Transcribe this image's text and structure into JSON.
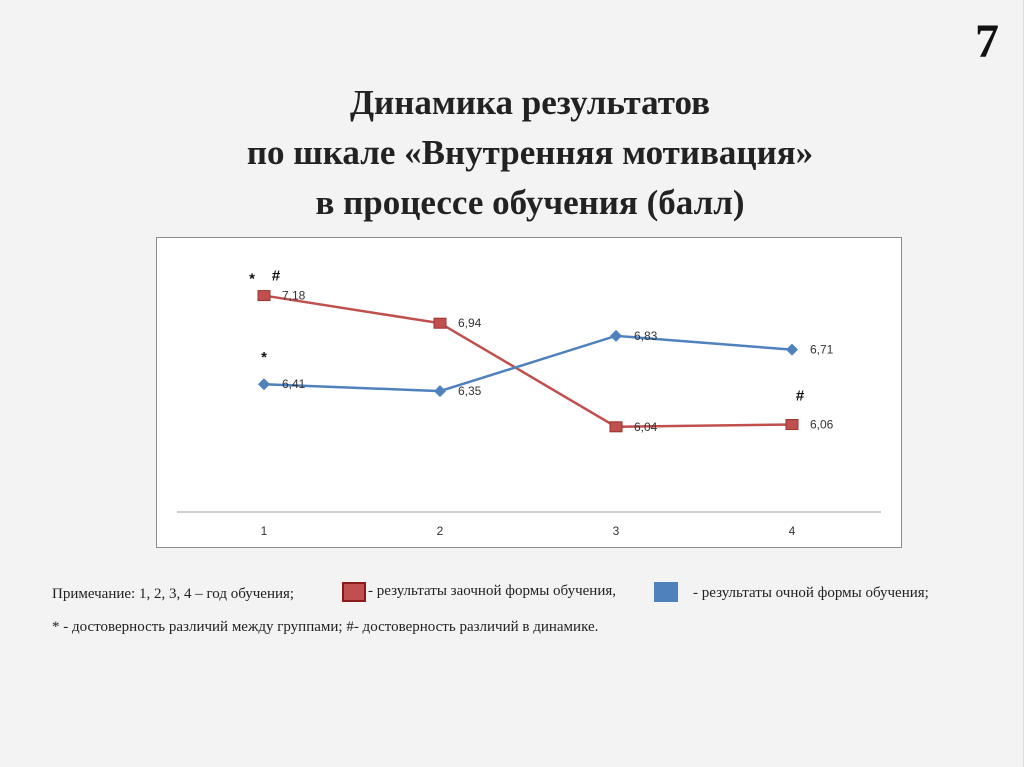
{
  "slide": {
    "number": "7"
  },
  "title": {
    "line1": "Динамика результатов",
    "line2": "по шкале «Внутренняя мотивация»",
    "line3": "в процессе обучения (балл)"
  },
  "chart_data": {
    "type": "line",
    "categories": [
      "1",
      "2",
      "3",
      "4"
    ],
    "series": [
      {
        "name": "- результаты заочной формы обучения,",
        "color": "#c0504d",
        "marker": "square",
        "values": [
          7.18,
          6.94,
          6.04,
          6.06
        ],
        "labels": [
          "7,18",
          "6,94",
          "6,04",
          "6,06"
        ]
      },
      {
        "name": "- результаты очной формы обучения;",
        "color": "#4f81bd",
        "marker": "diamond",
        "values": [
          6.41,
          6.35,
          6.83,
          6.71
        ],
        "labels": [
          "6,41",
          "6,35",
          "6,83",
          "6,71"
        ]
      }
    ],
    "annotations": [
      {
        "text": "*",
        "category": "1",
        "near": "series1"
      },
      {
        "text": "#",
        "category": "1",
        "near": "series1"
      },
      {
        "text": "*",
        "category": "1",
        "near": "series2"
      },
      {
        "text": "#",
        "category": "4",
        "near": "series1"
      }
    ],
    "ylim": [
      5.3,
      7.35
    ],
    "grid": false,
    "title": "",
    "xlabel": "",
    "ylabel": ""
  },
  "note": {
    "prefix": "Примечание: 1, 2, 3, 4 – год обучения;",
    "red_label": "- результаты заочной формы обучения,",
    "blue_label": "- результаты очной формы обучения;",
    "line2": "* - достоверность различий между группами; #- достоверность различий в динамике."
  }
}
